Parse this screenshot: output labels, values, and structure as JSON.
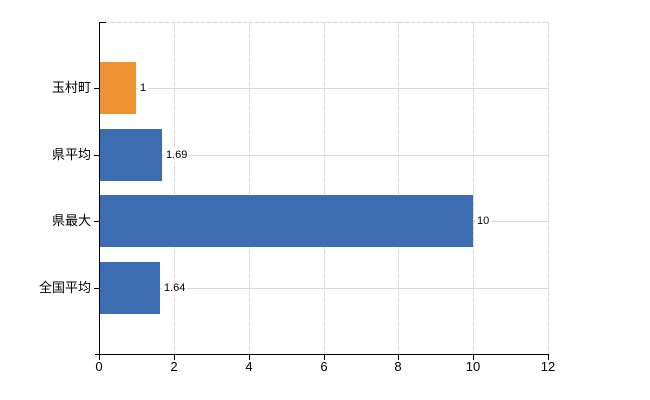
{
  "chart_data": {
    "type": "bar",
    "orientation": "horizontal",
    "categories": [
      "玉村町",
      "県平均",
      "県最大",
      "全国平均"
    ],
    "values": [
      1,
      1.69,
      10,
      1.64
    ],
    "value_labels": [
      "1",
      "1.69",
      "10",
      "1.64"
    ],
    "bar_colors": [
      "#ef9232",
      "#3c6db3",
      "#3c6db3",
      "#3c6db3"
    ],
    "xlim": [
      0,
      12
    ],
    "x_ticks": [
      0,
      2,
      4,
      6,
      8,
      10,
      12
    ],
    "x_tick_labels": [
      "0",
      "2",
      "4",
      "6",
      "8",
      "10",
      "12"
    ],
    "grid": true,
    "legend": false,
    "colors": {
      "bar_blue": "#3c6db3",
      "bar_orange": "#ef9232",
      "grid": "#d9d9d9",
      "axis": "#000000",
      "background": "#ffffff"
    }
  }
}
